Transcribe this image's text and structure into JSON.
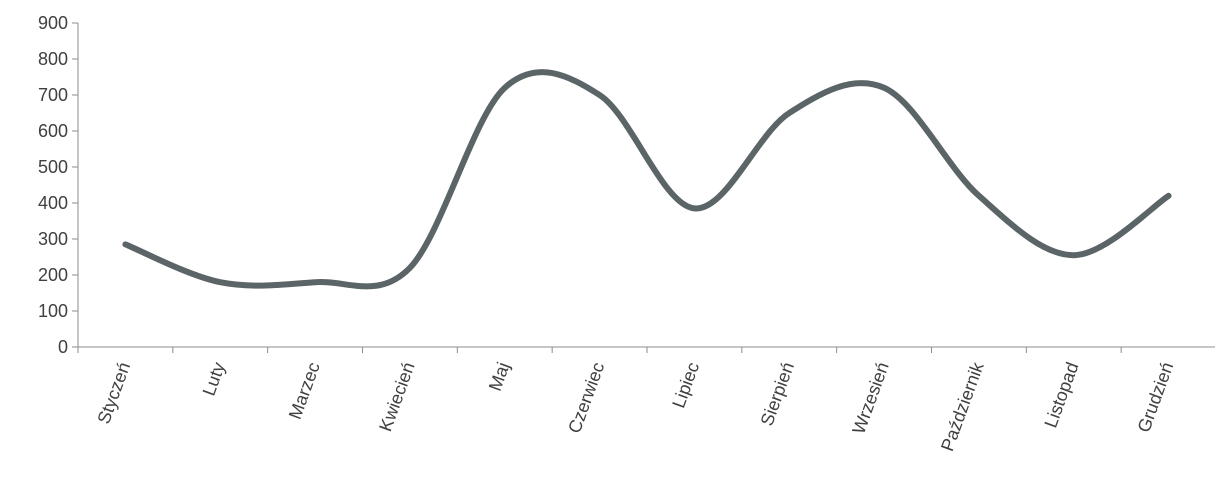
{
  "chart_data": {
    "type": "line",
    "categories": [
      "Styczeń",
      "Luty",
      "Marzec",
      "Kwiecień",
      "Maj",
      "Czerwiec",
      "Lipiec",
      "Sierpień",
      "Wrzesień",
      "Październik",
      "Listopad",
      "Grudzień"
    ],
    "series": [
      {
        "values": [
          285,
          180,
          180,
          220,
          720,
          700,
          385,
          650,
          720,
          420,
          255,
          420
        ]
      }
    ],
    "ylim": [
      0,
      900
    ],
    "yticks": [
      0,
      100,
      200,
      300,
      400,
      500,
      600,
      700,
      800,
      900
    ],
    "title": "",
    "xlabel": "",
    "ylabel": "",
    "grid": false,
    "legend": "none",
    "smooth": true,
    "line_color": "#5b6466"
  }
}
